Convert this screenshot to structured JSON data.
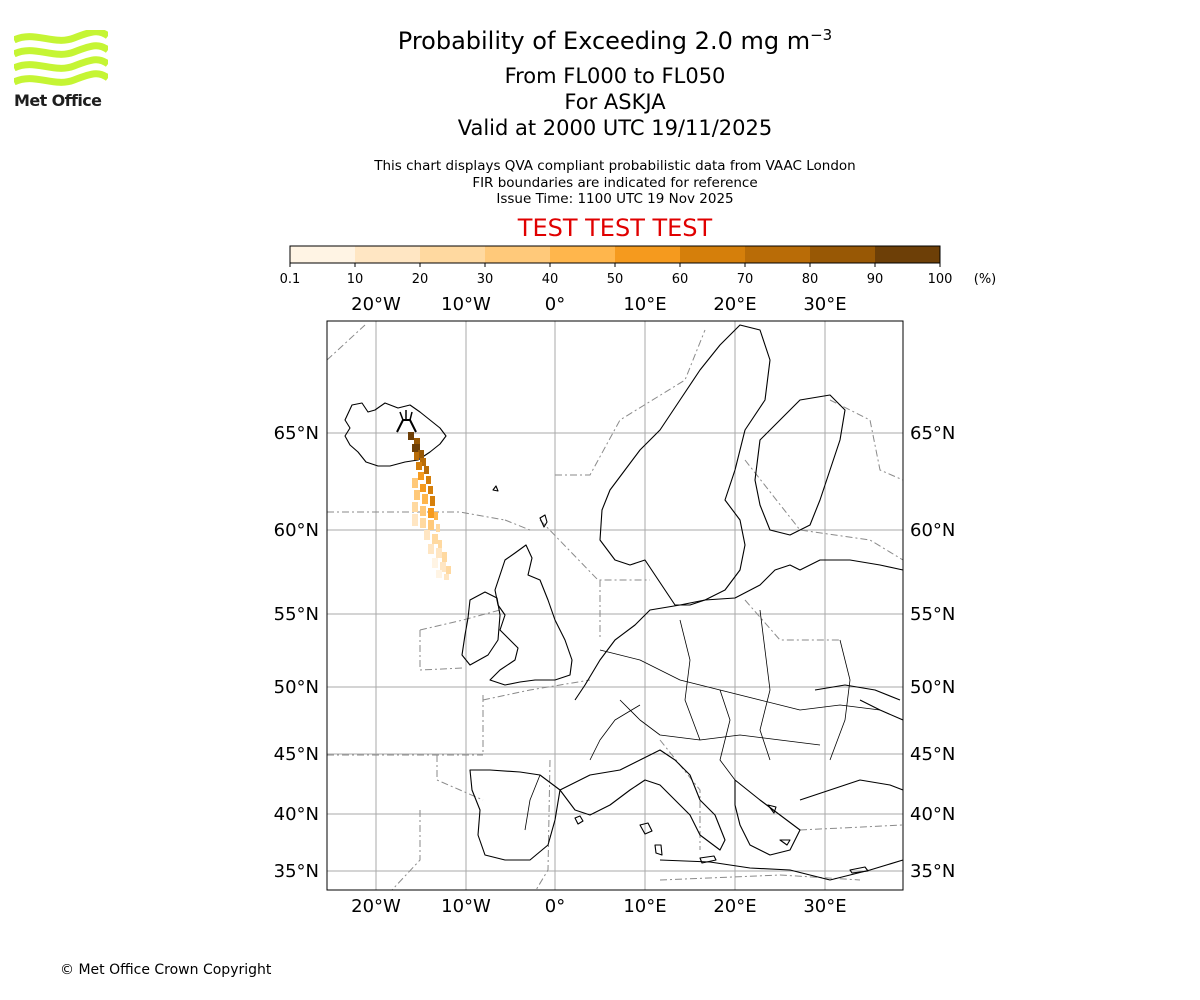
{
  "logo": {
    "text": "Met Office",
    "color": "#c5f534"
  },
  "title": {
    "main": "Probability of Exceeding 2.0 mg m",
    "exponent": "−3"
  },
  "subtitle_lines": [
    "From FL000 to FL050",
    "For ASKJA",
    "Valid at 2000 UTC 19/11/2025"
  ],
  "notes": [
    "This chart displays QVA compliant probabilistic data from VAAC London",
    "FIR boundaries are indicated for reference",
    "Issue Time: 1100 UTC 19 Nov 2025"
  ],
  "banner": {
    "text": "TEST TEST TEST",
    "color": "#e00000"
  },
  "colorbar": {
    "ticks": [
      "0.1",
      "10",
      "20",
      "30",
      "40",
      "50",
      "60",
      "70",
      "80",
      "90",
      "100"
    ],
    "unit": "(%)",
    "colors": [
      "#fff4e4",
      "#ffe6c3",
      "#ffd9a0",
      "#ffc97a",
      "#ffb64c",
      "#f59a1e",
      "#d57f0b",
      "#b96c07",
      "#985805",
      "#6d3f07"
    ]
  },
  "map": {
    "lon_labels": [
      "20°W",
      "10°W",
      "0°",
      "10°E",
      "20°E",
      "30°E"
    ],
    "lat_labels": [
      "65°N",
      "60°N",
      "55°N",
      "50°N",
      "45°N",
      "40°N",
      "35°N"
    ],
    "volcano": "ASKJA"
  },
  "copyright": "© Met Office Crown Copyright"
}
